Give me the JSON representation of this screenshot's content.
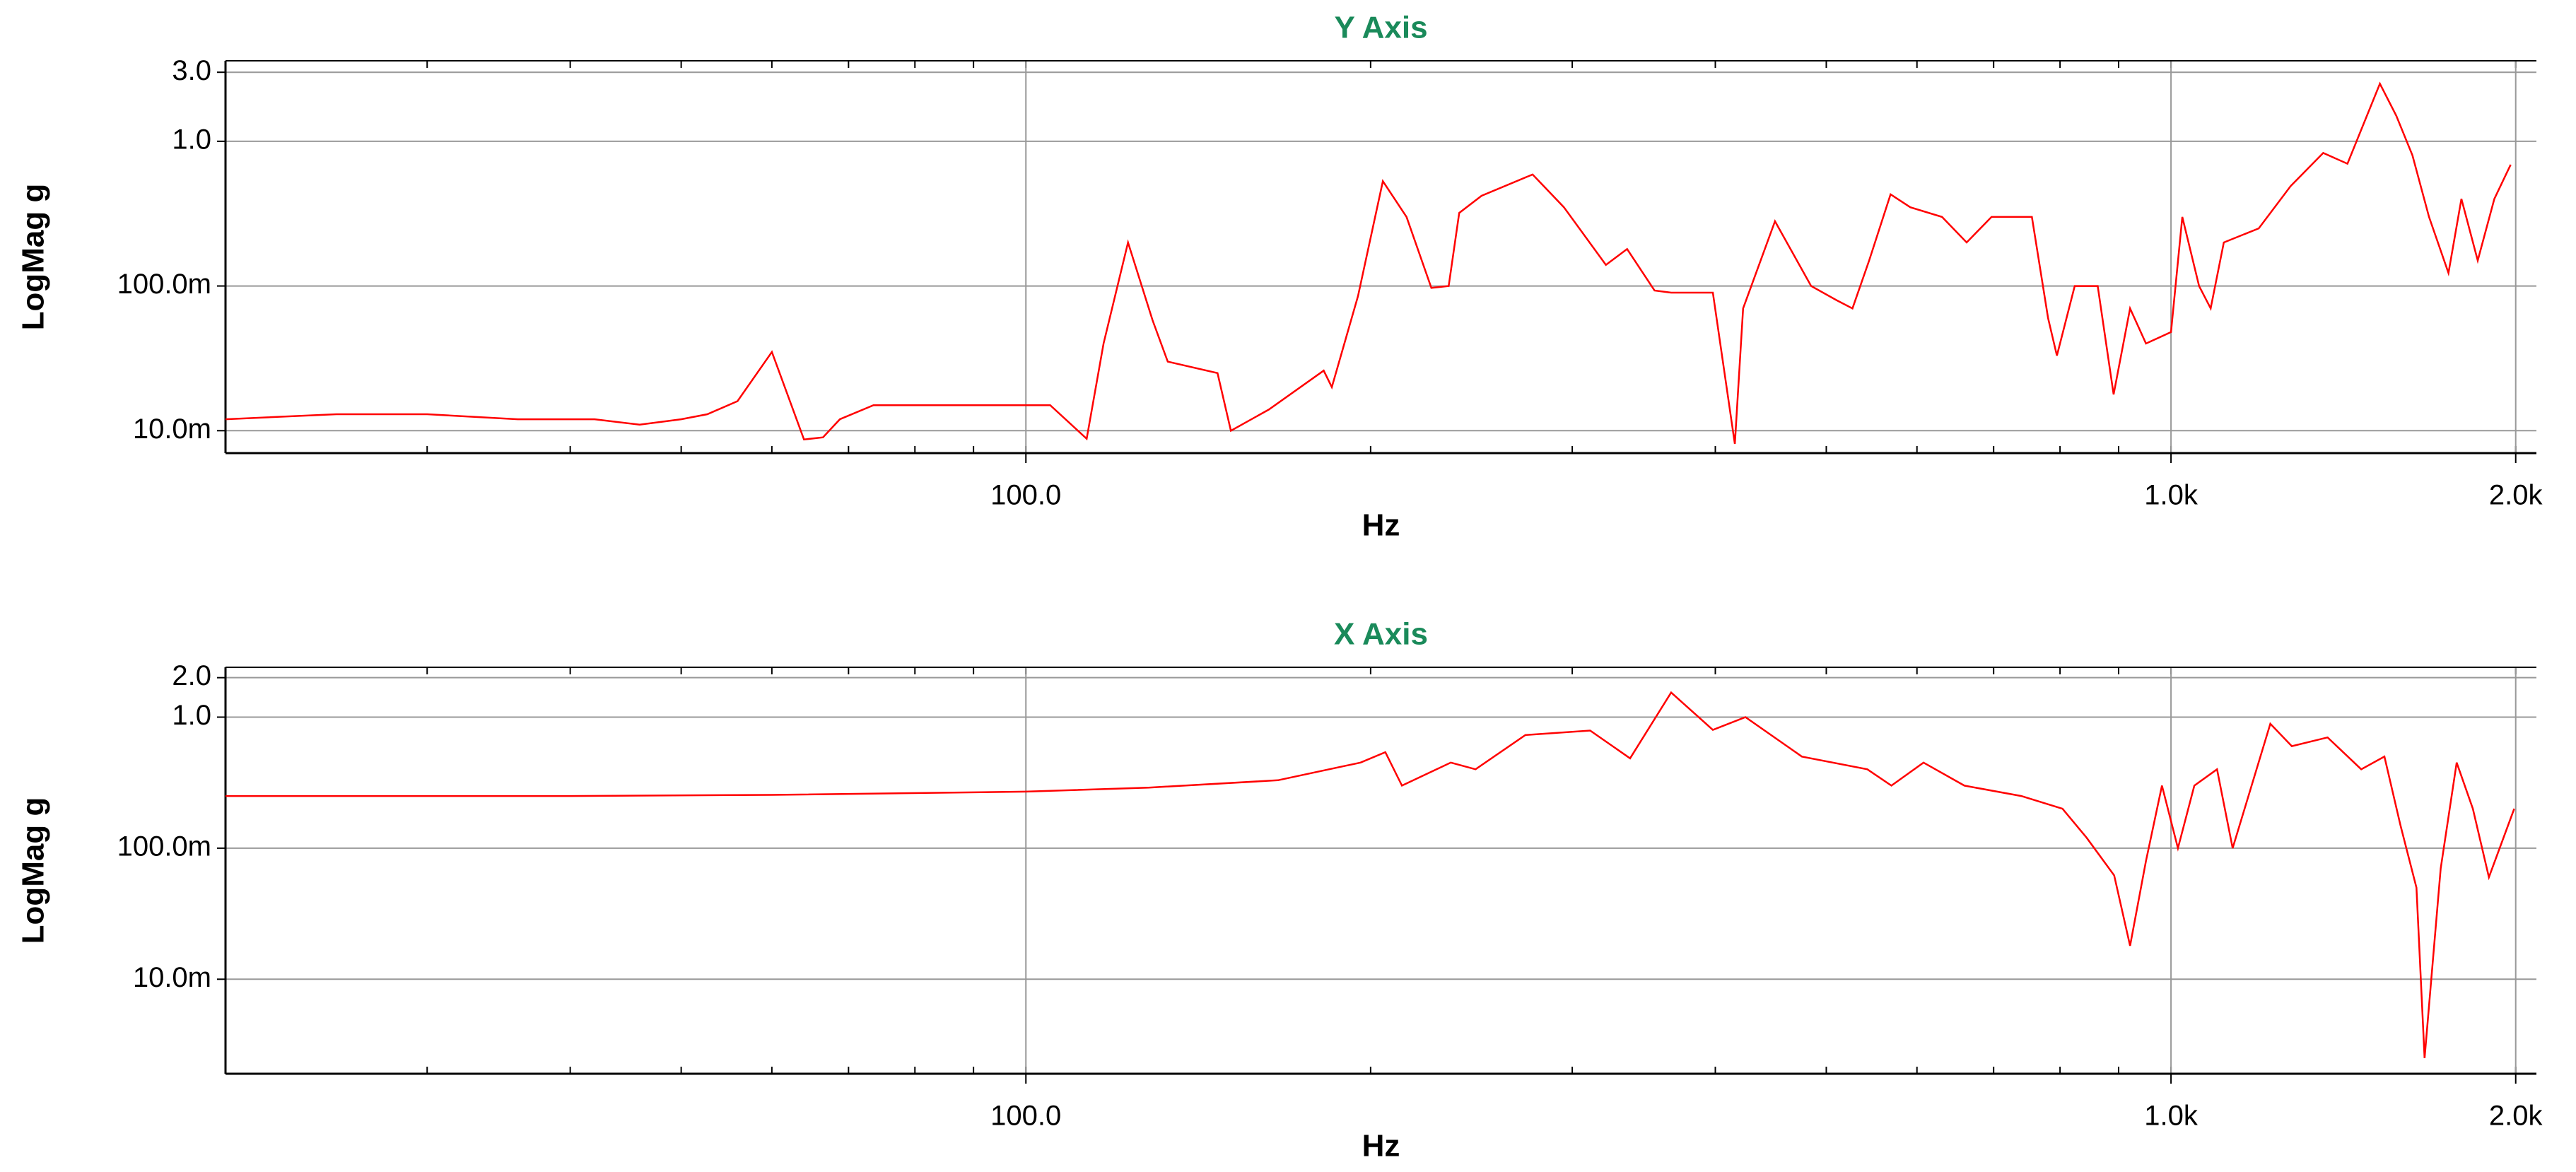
{
  "chart_data": [
    {
      "type": "line",
      "title": "Y Axis",
      "xlabel": "Hz",
      "ylabel": "LogMag g",
      "xscale": "log",
      "yscale": "log",
      "grid": true,
      "color": "#ff0000",
      "xlim": [
        20,
        2085
      ],
      "ylim": [
        0.007,
        3.6
      ],
      "xticks": [
        {
          "value": 100,
          "label": "100.0"
        },
        {
          "value": 1000,
          "label": "1.0k"
        },
        {
          "value": 2000,
          "label": "2.0k"
        }
      ],
      "yticks": [
        {
          "value": 0.01,
          "label": "10.0m"
        },
        {
          "value": 0.1,
          "label": "100.0m"
        },
        {
          "value": 1,
          "label": "1.0"
        },
        {
          "value": 3,
          "label": "3.0"
        }
      ],
      "x": [
        20,
        25,
        30,
        36,
        42,
        46,
        50,
        52.7,
        56,
        60,
        64,
        66.5,
        68.8,
        73.6,
        85,
        95,
        105,
        113,
        116.9,
        122.8,
        129,
        133,
        147,
        151,
        163,
        182,
        185,
        195,
        205,
        215,
        226,
        234,
        239,
        250,
        277,
        295,
        321,
        335,
        354,
        366,
        398,
        416,
        423,
        451,
        485,
        510,
        527,
        545,
        569,
        592,
        631,
        663,
        697,
        756,
        781,
        795,
        824,
        863,
        891,
        921,
        951,
        1000,
        1023,
        1058,
        1083,
        1112,
        1193,
        1272,
        1358,
        1426,
        1522,
        1573,
        1625,
        1680,
        1747,
        1793,
        1853,
        1916,
        1980
      ],
      "values": [
        0.012,
        0.013,
        0.013,
        0.012,
        0.012,
        0.011,
        0.012,
        0.013,
        0.016,
        0.035,
        0.0087,
        0.009,
        0.012,
        0.015,
        0.015,
        0.015,
        0.015,
        0.0088,
        0.04,
        0.2,
        0.058,
        0.03,
        0.025,
        0.01,
        0.014,
        0.026,
        0.02,
        0.085,
        0.53,
        0.3,
        0.097,
        0.1,
        0.32,
        0.42,
        0.59,
        0.35,
        0.14,
        0.18,
        0.093,
        0.09,
        0.09,
        0.0081,
        0.07,
        0.28,
        0.1,
        0.08,
        0.07,
        0.15,
        0.43,
        0.35,
        0.3,
        0.2,
        0.3,
        0.3,
        0.06,
        0.033,
        0.1,
        0.1,
        0.0178,
        0.07,
        0.04,
        0.048,
        0.3,
        0.1,
        0.07,
        0.2,
        0.25,
        0.49,
        0.83,
        0.7,
        2.5,
        1.5,
        0.8,
        0.3,
        0.123,
        0.4,
        0.15,
        0.4,
        0.69
      ]
    },
    {
      "type": "line",
      "title": "X Axis",
      "xlabel": "Hz",
      "ylabel": "LogMag g",
      "xscale": "log",
      "yscale": "log",
      "grid": true,
      "color": "#ff0000",
      "xlim": [
        20,
        2085
      ],
      "ylim": [
        0.0019,
        2.4
      ],
      "xticks": [
        {
          "value": 100,
          "label": "100.0"
        },
        {
          "value": 1000,
          "label": "1.0k"
        },
        {
          "value": 2000,
          "label": "2.0k"
        }
      ],
      "yticks": [
        {
          "value": 0.01,
          "label": "10.0m"
        },
        {
          "value": 0.1,
          "label": "100.0m"
        },
        {
          "value": 1,
          "label": "1.0"
        },
        {
          "value": 2,
          "label": "2.0"
        }
      ],
      "x": [
        20,
        40,
        60,
        100,
        128,
        166,
        196,
        206,
        213,
        235,
        247,
        273,
        311,
        337,
        366,
        398,
        425,
        476,
        543,
        570,
        608,
        660,
        740,
        804,
        844,
        892,
        921,
        951,
        982,
        1014,
        1048,
        1097,
        1132,
        1221,
        1275,
        1370,
        1466,
        1536,
        1586,
        1638,
        1665,
        1720,
        1776,
        1835,
        1895,
        1994
      ],
      "values": [
        0.25,
        0.25,
        0.255,
        0.27,
        0.29,
        0.33,
        0.45,
        0.54,
        0.3,
        0.45,
        0.4,
        0.73,
        0.79,
        0.485,
        1.54,
        0.8,
        1.0,
        0.5,
        0.4,
        0.3,
        0.45,
        0.3,
        0.25,
        0.2,
        0.12,
        0.062,
        0.018,
        0.08,
        0.3,
        0.1,
        0.3,
        0.4,
        0.1,
        0.89,
        0.6,
        0.7,
        0.4,
        0.5,
        0.15,
        0.05,
        0.0025,
        0.07,
        0.45,
        0.2,
        0.06,
        0.2
      ]
    }
  ]
}
